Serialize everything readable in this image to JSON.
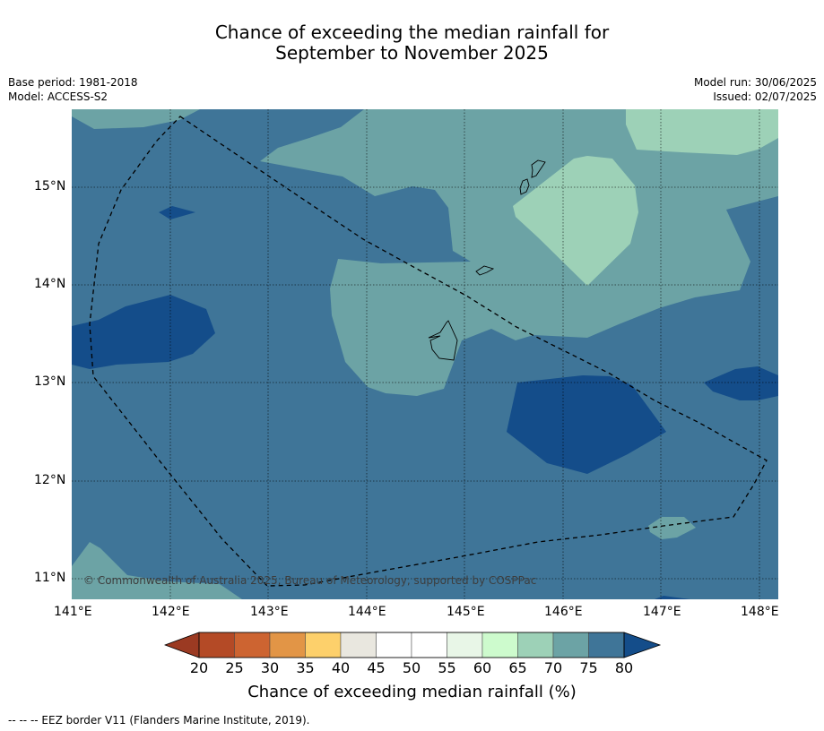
{
  "title_line1": "Chance of exceeding the median rainfall for",
  "title_line2": "September to November 2025",
  "base_period": "Base period: 1981-2018",
  "model": "Model: ACCESS-S2",
  "model_run": "Model run: 30/06/2025",
  "issued": "Issued: 02/07/2025",
  "copyright": "© Commonwealth of Australia 2025, Bureau of Meteorology, supported by COSPPac",
  "x_ticks": [
    "141°E",
    "142°E",
    "143°E",
    "144°E",
    "145°E",
    "146°E",
    "147°E",
    "148°E"
  ],
  "y_ticks": [
    "15°N",
    "14°N",
    "13°N",
    "12°N",
    "11°N"
  ],
  "colorbar": {
    "title": "Chance of exceeding median rainfall (%)",
    "labels": [
      "20",
      "25",
      "30",
      "35",
      "40",
      "45",
      "50",
      "55",
      "60",
      "65",
      "70",
      "75",
      "80"
    ],
    "colors": {
      "below20": "#9b3a22",
      "20_25": "#b44a26",
      "25_30": "#cd6431",
      "30_35": "#e29546",
      "35_40": "#fdd06b",
      "40_45": "#e9e7df",
      "45_50": "#ffffff",
      "50_55": "#ffffff",
      "55_60": "#e8f6e7",
      "60_65": "#cdfbcd",
      "65_70": "#9dd1b7",
      "70_75": "#6ca3a5",
      "75_80": "#3f7598",
      "above80": "#144d8a"
    }
  },
  "footer": "--  --  -- EEZ border V11 (Flanders Marine Institute, 2019)."
}
